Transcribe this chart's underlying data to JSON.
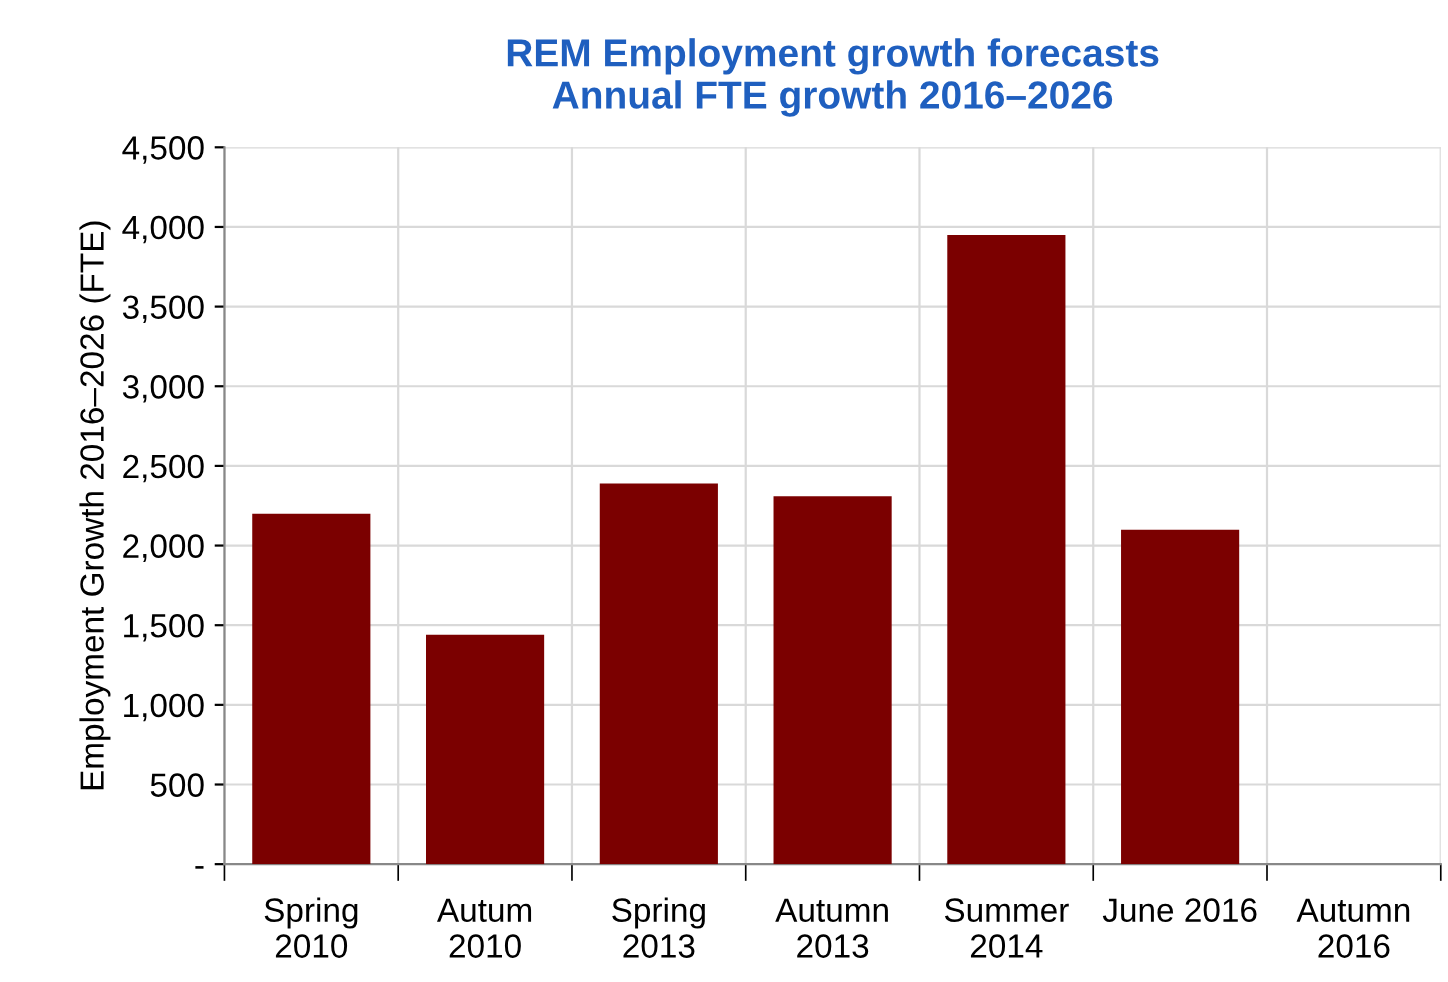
{
  "chart_data": {
    "type": "bar",
    "title": "REM Employment growth forecasts\nAnnual FTE growth 2016–2026",
    "ylabel": "Employment Growth 2016–2026 (FTE)",
    "categories": [
      "Spring\n2010",
      "Autum\n2010",
      "Spring\n2013",
      "Autumn\n2013",
      "Summer\n2014",
      "June 2016",
      "Autumn\n2016"
    ],
    "values": [
      2200,
      1440,
      2390,
      2310,
      3950,
      2100,
      null
    ],
    "color": "#7b0000",
    "ylim": [
      0,
      4500
    ],
    "yticks": [
      {
        "value": 0,
        "label": "-"
      },
      500,
      {
        "value": 1000,
        "label": "1,000"
      },
      {
        "value": 1500,
        "label": "1,500"
      },
      {
        "value": 2000,
        "label": "2,000"
      },
      {
        "value": 2500,
        "label": "2,500"
      },
      {
        "value": 3000,
        "label": "3,000"
      },
      {
        "value": 3500,
        "label": "3,500"
      },
      {
        "value": 4000,
        "label": "4,000"
      },
      {
        "value": 4500,
        "label": "4,500"
      }
    ],
    "grid": true
  }
}
